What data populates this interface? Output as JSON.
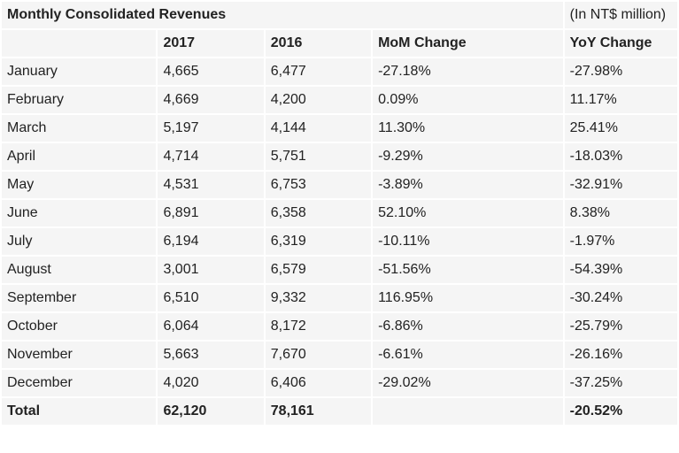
{
  "title": "Monthly Consolidated Revenues",
  "unit": "(In NT$ million)",
  "headers": [
    "",
    "2017",
    "2016",
    "MoM Change",
    "YoY Change"
  ],
  "rows": [
    {
      "month": "January",
      "y2017": "4,665",
      "y2016": "6,477",
      "mom": "-27.18%",
      "yoy": "-27.98%"
    },
    {
      "month": "February",
      "y2017": "4,669",
      "y2016": "4,200",
      "mom": "0.09%",
      "yoy": "11.17%"
    },
    {
      "month": "March",
      "y2017": "5,197",
      "y2016": "4,144",
      "mom": "11.30%",
      "yoy": "25.41%"
    },
    {
      "month": "April",
      "y2017": "4,714",
      "y2016": "5,751",
      "mom": "-9.29%",
      "yoy": "-18.03%"
    },
    {
      "month": "May",
      "y2017": "4,531",
      "y2016": "6,753",
      "mom": "-3.89%",
      "yoy": "-32.91%"
    },
    {
      "month": "June",
      "y2017": "6,891",
      "y2016": "6,358",
      "mom": "52.10%",
      "yoy": "8.38%"
    },
    {
      "month": "July",
      "y2017": "6,194",
      "y2016": "6,319",
      "mom": "-10.11%",
      "yoy": "-1.97%"
    },
    {
      "month": "August",
      "y2017": "3,001",
      "y2016": "6,579",
      "mom": "-51.56%",
      "yoy": "-54.39%"
    },
    {
      "month": "September",
      "y2017": "6,510",
      "y2016": "9,332",
      "mom": "116.95%",
      "yoy": "-30.24%"
    },
    {
      "month": "October",
      "y2017": "6,064",
      "y2016": "8,172",
      "mom": "-6.86%",
      "yoy": "-25.79%"
    },
    {
      "month": "November",
      "y2017": "5,663",
      "y2016": "7,670",
      "mom": "-6.61%",
      "yoy": "-26.16%"
    },
    {
      "month": "December",
      "y2017": "4,020",
      "y2016": "6,406",
      "mom": "-29.02%",
      "yoy": "-37.25%"
    }
  ],
  "total": {
    "label": "Total",
    "y2017": "62,120",
    "y2016": "78,161",
    "mom": "",
    "yoy": "-20.52%"
  }
}
